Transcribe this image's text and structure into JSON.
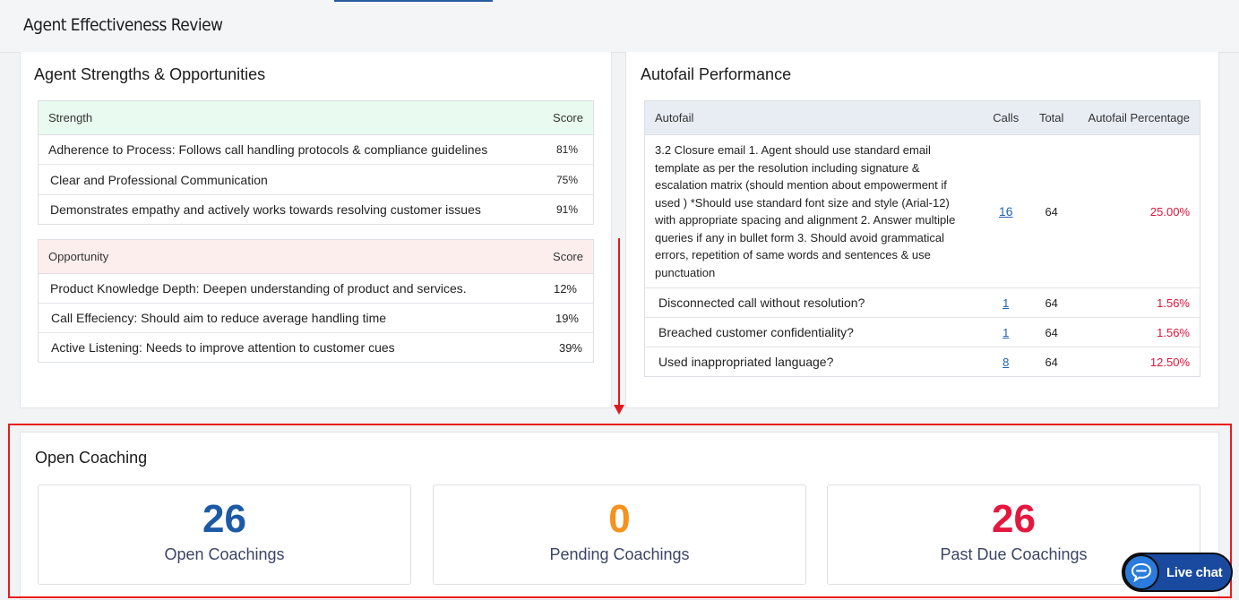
{
  "header": {
    "title": "Agent Effectiveness Review"
  },
  "strengths_panel": {
    "title": "Agent Strengths & Opportunities",
    "strength_table": {
      "headers": [
        "Strength",
        "Score"
      ],
      "rows": [
        {
          "label": "Adherence to Process: Follows call handling protocols & compliance guidelines",
          "score": "81%"
        },
        {
          "label": "Clear and Professional Communication",
          "score": "75%"
        },
        {
          "label": "Demonstrates empathy and actively works towards resolving customer issues",
          "score": "91%"
        }
      ]
    },
    "opportunity_table": {
      "headers": [
        "Opportunity",
        "Score"
      ],
      "rows": [
        {
          "label": "Product Knowledge Depth: Deepen understanding of product and services.",
          "score": "12%"
        },
        {
          "label": "Call Effeciency: Should aim to reduce average handling time",
          "score": "19%"
        },
        {
          "label": "Active Listening: Needs to improve attention to customer cues",
          "score": "39%"
        }
      ]
    }
  },
  "autofail_panel": {
    "title": "Autofail Performance",
    "headers": [
      "Autofail",
      "Calls",
      "Total",
      "Autofail Percentage"
    ],
    "rows": [
      {
        "label": "3.2 Closure email 1. Agent should use standard email template as per the resolution including signature & escalation matrix (should mention about empowerment if used ) *Should use standard font size and style (Arial-12) with appropriate spacing and alignment 2. Answer multiple queries if any in bullet form 3. Should avoid grammatical errors, repetition of same words and sentences & use punctuation",
        "calls": "16",
        "total": "64",
        "pct": "25.00%"
      },
      {
        "label": "Disconnected call without resolution?",
        "calls": "1",
        "total": "64",
        "pct": "1.56%"
      },
      {
        "label": "Breached customer confidentiality?",
        "calls": "1",
        "total": "64",
        "pct": "1.56%"
      },
      {
        "label": "Used inappropriated language?",
        "calls": "8",
        "total": "64",
        "pct": "12.50%"
      }
    ]
  },
  "coaching": {
    "title": "Open Coaching",
    "cards": [
      {
        "value": "26",
        "label": "Open Coachings",
        "color": "#1c5aa6"
      },
      {
        "value": "0",
        "label": "Pending Coachings",
        "color": "#f6921e"
      },
      {
        "value": "26",
        "label": "Past Due Coachings",
        "color": "#e5173f"
      }
    ]
  },
  "livechat": {
    "label": "Live chat",
    "icon": "chat-bubble-icon"
  },
  "annotation": {
    "color": "#e0191b"
  }
}
